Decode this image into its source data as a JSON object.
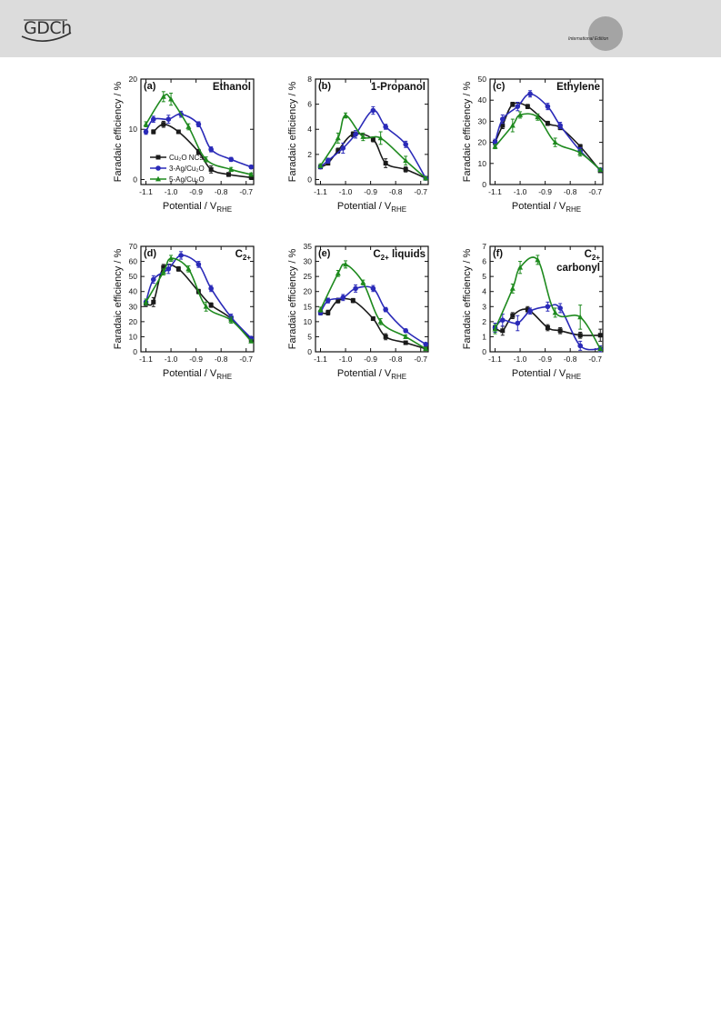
{
  "header": {
    "logo_text": "GDCh",
    "edition_label": "International Edition"
  },
  "series_meta": [
    {
      "name": "Cu₂O NCs",
      "color": "#1a1a1a",
      "marker": "square"
    },
    {
      "name": "3-Ag/Cu₂O",
      "color": "#2a2ab8",
      "marker": "circle"
    },
    {
      "name": "5-Ag/Cu₂O",
      "color": "#1e8a1e",
      "marker": "triangle"
    }
  ],
  "chart_data": [
    {
      "type": "line",
      "panel": "(a)",
      "title": "Ethanol",
      "title_sub": "",
      "xlabel": "Potential / V",
      "xlabel_sub": "RHE",
      "ylabel": "Faradaic efficiency / %",
      "xlim": [
        -1.12,
        -0.67
      ],
      "ylim": [
        -1,
        20
      ],
      "xticks": [
        -1.1,
        -1.0,
        -0.9,
        -0.8,
        -0.7
      ],
      "yticks": [
        0,
        10,
        20
      ],
      "legend": "inside-lower-left",
      "series": [
        {
          "x": [
            -1.07,
            -1.03,
            -0.97,
            -0.89,
            -0.84,
            -0.77,
            -0.68
          ],
          "y": [
            9.5,
            11,
            9.5,
            5.5,
            2,
            1,
            0.4
          ],
          "err": [
            0.4,
            0.6,
            0.3,
            0.5,
            0.7,
            0.4,
            0.3
          ]
        },
        {
          "x": [
            -1.1,
            -1.07,
            -1.01,
            -0.96,
            -0.89,
            -0.84,
            -0.76,
            -0.68
          ],
          "y": [
            9.5,
            12,
            12,
            13,
            11,
            6,
            4,
            2.5
          ],
          "err": [
            0.5,
            0.6,
            0.8,
            0.6,
            0.5,
            0.5,
            0.4,
            0.3
          ]
        },
        {
          "x": [
            -1.1,
            -1.03,
            -1.0,
            -0.93,
            -0.86,
            -0.76,
            -0.68
          ],
          "y": [
            11,
            16.5,
            16,
            10.5,
            4,
            2,
            1
          ],
          "err": [
            0.5,
            1.0,
            1.2,
            0.6,
            0.5,
            0.4,
            0.3
          ]
        }
      ]
    },
    {
      "type": "line",
      "panel": "(b)",
      "title": "1-Propanol",
      "title_sub": "",
      "xlabel": "Potential / V",
      "xlabel_sub": "RHE",
      "ylabel": "Faradaic efficiency / %",
      "xlim": [
        -1.12,
        -0.67
      ],
      "ylim": [
        -0.4,
        8
      ],
      "xticks": [
        -1.1,
        -1.0,
        -0.9,
        -0.8,
        -0.7
      ],
      "yticks": [
        0,
        2,
        4,
        6,
        8
      ],
      "legend": "",
      "series": [
        {
          "x": [
            -1.1,
            -1.07,
            -1.03,
            -0.97,
            -0.89,
            -0.84,
            -0.76,
            -0.68
          ],
          "y": [
            1,
            1.3,
            2.3,
            3.6,
            3.2,
            1.3,
            0.8,
            0.1
          ],
          "err": [
            0.1,
            0.15,
            0.2,
            0.2,
            0.2,
            0.35,
            0.2,
            0.1
          ]
        },
        {
          "x": [
            -1.1,
            -1.07,
            -1.01,
            -0.96,
            -0.89,
            -0.84,
            -0.76,
            -0.68
          ],
          "y": [
            1,
            1.5,
            2.5,
            3.6,
            5.5,
            4.2,
            2.8,
            0.1
          ],
          "err": [
            0.1,
            0.2,
            0.4,
            0.3,
            0.3,
            0.2,
            0.25,
            0.1
          ]
        },
        {
          "x": [
            -1.1,
            -1.03,
            -1.0,
            -0.93,
            -0.86,
            -0.76,
            -0.68
          ],
          "y": [
            1.1,
            3.3,
            5.1,
            3.4,
            3.3,
            1.5,
            0.1
          ],
          "err": [
            0.15,
            0.4,
            0.2,
            0.3,
            0.5,
            0.35,
            0.1
          ]
        }
      ]
    },
    {
      "type": "line",
      "panel": "(c)",
      "title": "Ethylene",
      "title_sub": "",
      "xlabel": "Potential / V",
      "xlabel_sub": "RHE",
      "ylabel": "Faradaic efficiency / %",
      "xlim": [
        -1.12,
        -0.67
      ],
      "ylim": [
        0,
        50
      ],
      "xticks": [
        -1.1,
        -1.0,
        -0.9,
        -0.8,
        -0.7
      ],
      "yticks": [
        0,
        10,
        20,
        30,
        40,
        50
      ],
      "legend": "",
      "series": [
        {
          "x": [
            -1.1,
            -1.07,
            -1.03,
            -0.97,
            -0.89,
            -0.84,
            -0.76,
            -0.68
          ],
          "y": [
            20,
            28,
            38,
            37,
            29,
            27,
            18,
            6.5
          ],
          "err": [
            1,
            1.5,
            1,
            1,
            1,
            1,
            1,
            0.5
          ]
        },
        {
          "x": [
            -1.1,
            -1.07,
            -1.01,
            -0.96,
            -0.89,
            -0.84,
            -0.76,
            -0.68
          ],
          "y": [
            20,
            31,
            37,
            43,
            37,
            28,
            16,
            7
          ],
          "err": [
            1.5,
            2,
            2,
            1.5,
            1.5,
            1.5,
            1.5,
            0.8
          ]
        },
        {
          "x": [
            -1.1,
            -1.03,
            -1.0,
            -0.93,
            -0.86,
            -0.76,
            -0.68
          ],
          "y": [
            18,
            28,
            33,
            32,
            20,
            15,
            7
          ],
          "err": [
            1,
            3,
            1.5,
            1.5,
            2,
            1.5,
            0.5
          ]
        }
      ]
    },
    {
      "type": "line",
      "panel": "(d)",
      "title": "C",
      "title_sub": "2+",
      "xlabel": "Potential / V",
      "xlabel_sub": "RHE",
      "ylabel": "Faradaic efficiency / %",
      "xlim": [
        -1.12,
        -0.67
      ],
      "ylim": [
        0,
        70
      ],
      "xticks": [
        -1.1,
        -1.0,
        -0.9,
        -0.8,
        -0.7
      ],
      "yticks": [
        0,
        10,
        20,
        30,
        40,
        50,
        60,
        70
      ],
      "legend": "",
      "series": [
        {
          "x": [
            -1.1,
            -1.07,
            -1.03,
            -0.97,
            -0.89,
            -0.84,
            -0.76,
            -0.68
          ],
          "y": [
            32,
            33,
            56,
            55,
            40,
            31,
            22,
            8
          ],
          "err": [
            2,
            3,
            2,
            1.5,
            1.5,
            1.5,
            1.5,
            1
          ]
        },
        {
          "x": [
            -1.1,
            -1.07,
            -1.01,
            -0.96,
            -0.89,
            -0.84,
            -0.76,
            -0.68
          ],
          "y": [
            33,
            48,
            55,
            64,
            58,
            42,
            23,
            9
          ],
          "err": [
            2,
            2.5,
            3,
            2.5,
            2,
            2,
            2,
            1
          ]
        },
        {
          "x": [
            -1.1,
            -1.03,
            -1.0,
            -0.93,
            -0.86,
            -0.76,
            -0.68
          ],
          "y": [
            33,
            53,
            62,
            55,
            30,
            21,
            7
          ],
          "err": [
            2,
            2,
            2,
            2,
            3,
            2,
            1
          ]
        }
      ]
    },
    {
      "type": "line",
      "panel": "(e)",
      "title": "C",
      "title_sub": "2+",
      "title_suffix": " liquids",
      "xlabel": "Potential / V",
      "xlabel_sub": "RHE",
      "ylabel": "Faradaic efficiency / %",
      "xlim": [
        -1.12,
        -0.67
      ],
      "ylim": [
        0,
        35
      ],
      "xticks": [
        -1.1,
        -1.0,
        -0.9,
        -0.8,
        -0.7
      ],
      "yticks": [
        0,
        5,
        10,
        15,
        20,
        25,
        30,
        35
      ],
      "legend": "",
      "series": [
        {
          "x": [
            -1.1,
            -1.07,
            -1.03,
            -0.97,
            -0.89,
            -0.84,
            -0.76,
            -0.68
          ],
          "y": [
            13,
            13,
            17,
            17,
            11,
            5,
            3,
            1
          ],
          "err": [
            0.6,
            0.8,
            0.8,
            0.7,
            0.6,
            1.0,
            0.5,
            0.3
          ]
        },
        {
          "x": [
            -1.1,
            -1.07,
            -1.01,
            -0.96,
            -0.89,
            -0.84,
            -0.76,
            -0.68
          ],
          "y": [
            13,
            17,
            18,
            21,
            21,
            14,
            7,
            2.5
          ],
          "err": [
            0.8,
            0.8,
            1.0,
            1.2,
            1.0,
            0.7,
            0.6,
            0.4
          ]
        },
        {
          "x": [
            -1.1,
            -1.03,
            -1.0,
            -0.93,
            -0.86,
            -0.76,
            -0.68
          ],
          "y": [
            14,
            26,
            29,
            23,
            10,
            5,
            1
          ],
          "err": [
            0.8,
            1.0,
            1.2,
            0.8,
            1.0,
            0.6,
            0.3
          ]
        }
      ]
    },
    {
      "type": "line",
      "panel": "(f)",
      "title": "C",
      "title_sub": "2+",
      "title_line2": "carbonyl",
      "xlabel": "Potential / V",
      "xlabel_sub": "RHE",
      "ylabel": "Faradaic efficiency / %",
      "xlim": [
        -1.12,
        -0.67
      ],
      "ylim": [
        0,
        7
      ],
      "xticks": [
        -1.1,
        -1.0,
        -0.9,
        -0.8,
        -0.7
      ],
      "yticks": [
        0,
        1,
        2,
        3,
        4,
        5,
        6,
        7
      ],
      "legend": "",
      "series": [
        {
          "x": [
            -1.1,
            -1.07,
            -1.03,
            -0.97,
            -0.89,
            -0.84,
            -0.76,
            -0.68
          ],
          "y": [
            1.6,
            1.4,
            2.4,
            2.8,
            1.6,
            1.4,
            1.1,
            1.1
          ],
          "err": [
            0.3,
            0.3,
            0.2,
            0.2,
            0.2,
            0.2,
            0.2,
            0.4
          ]
        },
        {
          "x": [
            -1.1,
            -1.07,
            -1.01,
            -0.96,
            -0.89,
            -0.84,
            -0.76,
            -0.68
          ],
          "y": [
            1.6,
            2.1,
            1.9,
            2.7,
            3.0,
            2.9,
            0.4,
            0.2
          ],
          "err": [
            0.3,
            0.4,
            0.5,
            0.2,
            0.3,
            0.3,
            0.3,
            0.2
          ]
        },
        {
          "x": [
            -1.1,
            -1.03,
            -1.0,
            -0.93,
            -0.86,
            -0.76,
            -0.68
          ],
          "y": [
            1.5,
            4.2,
            5.6,
            6.1,
            2.6,
            2.3,
            0.2
          ],
          "err": [
            0.3,
            0.3,
            0.4,
            0.3,
            0.3,
            0.8,
            0.1
          ]
        }
      ]
    }
  ]
}
